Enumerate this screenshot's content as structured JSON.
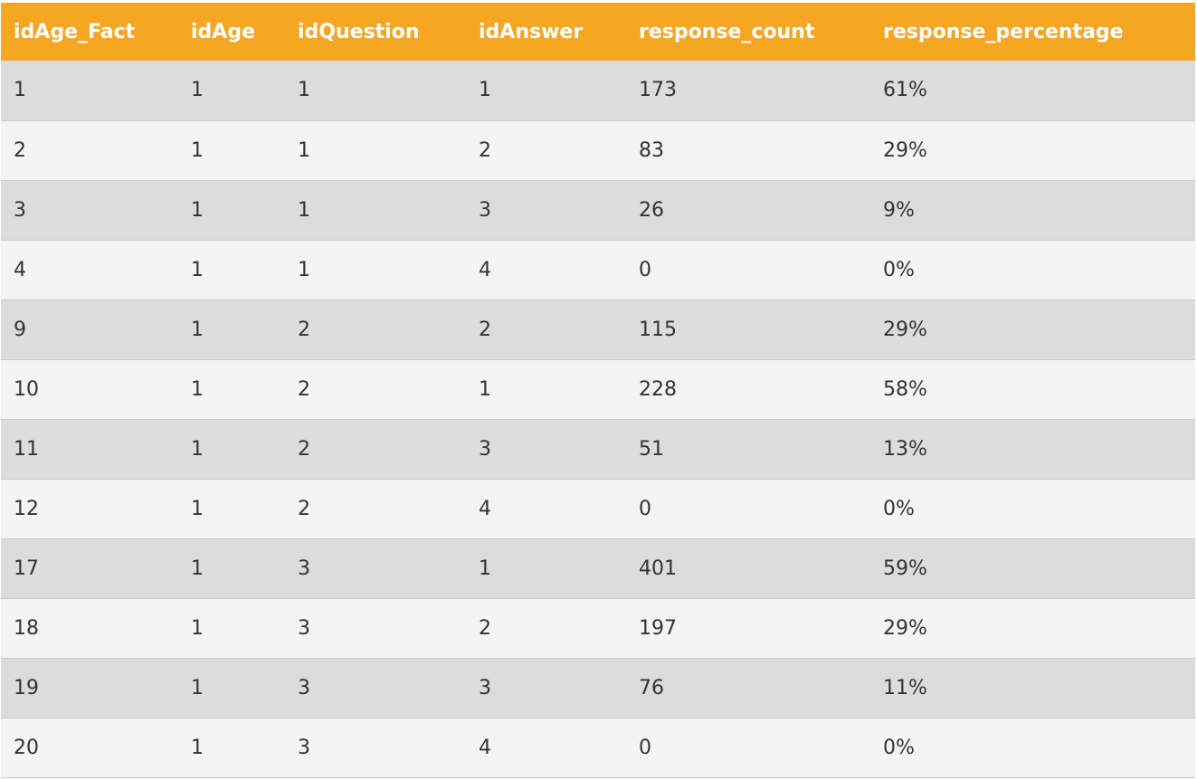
{
  "table": {
    "headers": [
      "idAge_Fact",
      "idAge",
      "idQuestion",
      "idAnswer",
      "response_count",
      "response_percentage"
    ],
    "rows": [
      [
        "1",
        "1",
        "1",
        "1",
        "173",
        "61%"
      ],
      [
        "2",
        "1",
        "1",
        "2",
        "83",
        "29%"
      ],
      [
        "3",
        "1",
        "1",
        "3",
        "26",
        "9%"
      ],
      [
        "4",
        "1",
        "1",
        "4",
        "0",
        "0%"
      ],
      [
        "9",
        "1",
        "2",
        "2",
        "115",
        "29%"
      ],
      [
        "10",
        "1",
        "2",
        "1",
        "228",
        "58%"
      ],
      [
        "11",
        "1",
        "2",
        "3",
        "51",
        "13%"
      ],
      [
        "12",
        "1",
        "2",
        "4",
        "0",
        "0%"
      ],
      [
        "17",
        "1",
        "3",
        "1",
        "401",
        "59%"
      ],
      [
        "18",
        "1",
        "3",
        "2",
        "197",
        "29%"
      ],
      [
        "19",
        "1",
        "3",
        "3",
        "76",
        "11%"
      ],
      [
        "20",
        "1",
        "3",
        "4",
        "0",
        "0%"
      ]
    ]
  },
  "colors": {
    "header_bg": "#f5a623",
    "header_text": "#ffffff",
    "row_odd": "#dcdcdc",
    "row_even": "#f4f4f4"
  }
}
